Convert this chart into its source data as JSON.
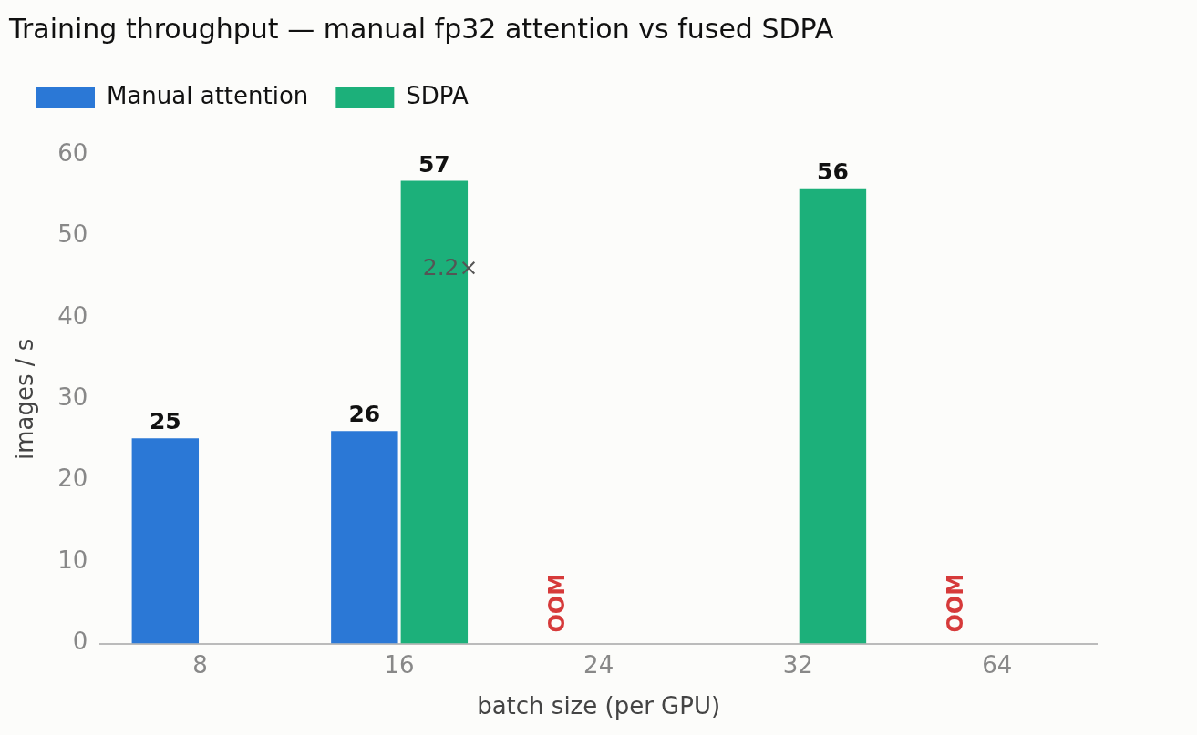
{
  "chart_data": {
    "type": "bar",
    "title": "Training throughput — manual fp32 attention vs fused SDPA",
    "xlabel": "batch size (per GPU)",
    "ylabel": "images / s",
    "categories": [
      "8",
      "16",
      "24",
      "32",
      "64"
    ],
    "series": [
      {
        "name": "Manual attention",
        "color": "#2b78d6",
        "values": [
          25.2,
          26.1,
          null,
          null,
          null
        ],
        "value_labels": [
          "25",
          "26",
          null,
          null,
          null
        ]
      },
      {
        "name": "SDPA",
        "color": "#1cb07a",
        "values": [
          null,
          56.8,
          null,
          55.9,
          null
        ],
        "value_labels": [
          null,
          "57",
          null,
          "56",
          null
        ]
      }
    ],
    "ylim": [
      0,
      60
    ],
    "yticks": [
      0,
      10,
      20,
      30,
      40,
      50,
      60
    ],
    "grid": false,
    "legend": "top left",
    "annotations": [
      {
        "text": "2.2×",
        "x": "16",
        "y": 46
      },
      "OOM",
      "OOM"
    ]
  }
}
